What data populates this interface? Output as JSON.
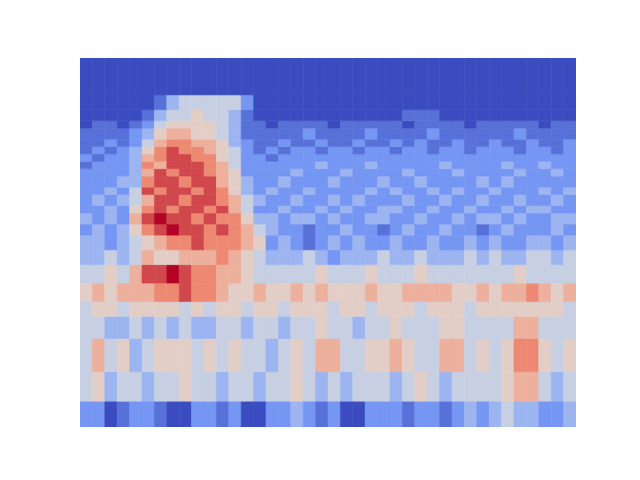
{
  "chart_data": {
    "type": "heatmap",
    "tick_labels": false,
    "xlim": [
      0,
      40
    ],
    "ylim": [
      0,
      100
    ],
    "y_edges": [
      0,
      7,
      15,
      24,
      30,
      34,
      39,
      44,
      48,
      52,
      55,
      58,
      60,
      63,
      65,
      68,
      70,
      72,
      74,
      76,
      78,
      81,
      83,
      86,
      90,
      100
    ],
    "color_range": [
      0,
      9
    ],
    "cells": [
      [
        2,
        2,
        0,
        1,
        2,
        2,
        1,
        0,
        0,
        2,
        2,
        1,
        2,
        0,
        0,
        2,
        2,
        3,
        2,
        1,
        2,
        0,
        0,
        2,
        2,
        2,
        1,
        2,
        2,
        1,
        2,
        3,
        2,
        3,
        4,
        3,
        3,
        2,
        2,
        3
      ],
      [
        4,
        5,
        3,
        4,
        4,
        3,
        4,
        4,
        5,
        4,
        4,
        3,
        4,
        4,
        3,
        4,
        4,
        5,
        4,
        3,
        4,
        3,
        4,
        4,
        4,
        3,
        4,
        5,
        4,
        3,
        4,
        4,
        4,
        4,
        5,
        6,
        6,
        4,
        3,
        4
      ],
      [
        4,
        6,
        4,
        5,
        3,
        4,
        5,
        5,
        5,
        4,
        5,
        4,
        5,
        4,
        4,
        3,
        4,
        5,
        4,
        6,
        6,
        4,
        4,
        5,
        5,
        6,
        5,
        4,
        4,
        6,
        6,
        4,
        5,
        4,
        5,
        7,
        7,
        5,
        4,
        5
      ],
      [
        4,
        4,
        3,
        3,
        4,
        3,
        4,
        3,
        4,
        3,
        3,
        4,
        4,
        3,
        4,
        4,
        3,
        4,
        4,
        5,
        4,
        4,
        3,
        4,
        4,
        5,
        4,
        4,
        4,
        5,
        5,
        4,
        4,
        4,
        4,
        6,
        6,
        4,
        4,
        4
      ],
      [
        4,
        5,
        5,
        4,
        5,
        5,
        5,
        5,
        4,
        5,
        4,
        5,
        5,
        4,
        5,
        5,
        4,
        5,
        5,
        5,
        4,
        5,
        5,
        4,
        5,
        5,
        5,
        4,
        5,
        5,
        5,
        4,
        5,
        5,
        5,
        5,
        5,
        5,
        5,
        4
      ],
      [
        5,
        6,
        5,
        6,
        6,
        6,
        7,
        7,
        8,
        7,
        7,
        6,
        5,
        5,
        6,
        5,
        5,
        6,
        5,
        6,
        5,
        5,
        5,
        6,
        5,
        5,
        6,
        6,
        6,
        6,
        5,
        5,
        6,
        5,
        6,
        6,
        7,
        6,
        5,
        6
      ],
      [
        4,
        4,
        5,
        4,
        6,
        8,
        8,
        9,
        8,
        7,
        7,
        6,
        6,
        5,
        4,
        4,
        4,
        4,
        4,
        5,
        4,
        4,
        4,
        5,
        4,
        4,
        4,
        5,
        4,
        4,
        4,
        4,
        4,
        4,
        4,
        5,
        4,
        4,
        4,
        4
      ],
      [
        3,
        3,
        4,
        3,
        4,
        6,
        5,
        5,
        6,
        6,
        6,
        7,
        6,
        5,
        4,
        3,
        3,
        3,
        4,
        3,
        2,
        3,
        3,
        3,
        4,
        3,
        3,
        4,
        3,
        3,
        3,
        4,
        3,
        4,
        3,
        3,
        4,
        4,
        3,
        4
      ],
      [
        3,
        3,
        2,
        3,
        4,
        5,
        6,
        7,
        7,
        8,
        7,
        7,
        7,
        6,
        5,
        2,
        3,
        2,
        1,
        2,
        3,
        2,
        3,
        2,
        2,
        3,
        2,
        2,
        3,
        2,
        2,
        3,
        2,
        3,
        2,
        2,
        3,
        3,
        2,
        3
      ],
      [
        2,
        3,
        2,
        3,
        5,
        7,
        8,
        9,
        8,
        8,
        7,
        8,
        7,
        6,
        4,
        3,
        2,
        2,
        1,
        2,
        2,
        3,
        2,
        2,
        1,
        2,
        3,
        2,
        2,
        3,
        2,
        2,
        1,
        2,
        3,
        2,
        2,
        2,
        3,
        2
      ],
      [
        3,
        2,
        3,
        2,
        6,
        8,
        9,
        8,
        8,
        7,
        8,
        7,
        7,
        5,
        3,
        3,
        2,
        3,
        3,
        2,
        3,
        2,
        2,
        3,
        3,
        2,
        2,
        3,
        2,
        2,
        3,
        2,
        3,
        3,
        2,
        3,
        2,
        2,
        3,
        3
      ],
      [
        2,
        2,
        3,
        2,
        5,
        7,
        8,
        7,
        8,
        8,
        7,
        8,
        6,
        4,
        2,
        2,
        3,
        2,
        2,
        3,
        2,
        3,
        2,
        2,
        3,
        3,
        2,
        2,
        3,
        2,
        2,
        3,
        2,
        2,
        3,
        2,
        3,
        3,
        2,
        2
      ],
      [
        2,
        3,
        2,
        3,
        4,
        6,
        8,
        8,
        7,
        8,
        8,
        7,
        6,
        4,
        3,
        2,
        2,
        3,
        2,
        2,
        3,
        2,
        3,
        2,
        2,
        2,
        3,
        2,
        2,
        3,
        2,
        2,
        3,
        2,
        2,
        3,
        2,
        2,
        3,
        2
      ],
      [
        2,
        2,
        3,
        2,
        4,
        8,
        7,
        8,
        8,
        7,
        8,
        7,
        5,
        3,
        2,
        3,
        2,
        2,
        3,
        2,
        2,
        2,
        2,
        3,
        2,
        3,
        2,
        2,
        3,
        2,
        3,
        2,
        2,
        3,
        2,
        2,
        2,
        3,
        2,
        3
      ],
      [
        2,
        2,
        2,
        3,
        3,
        7,
        8,
        8,
        7,
        8,
        8,
        6,
        5,
        3,
        2,
        2,
        3,
        2,
        2,
        2,
        3,
        2,
        2,
        2,
        3,
        2,
        2,
        3,
        2,
        2,
        2,
        2,
        3,
        2,
        3,
        2,
        2,
        2,
        2,
        2
      ],
      [
        2,
        2,
        2,
        2,
        3,
        6,
        8,
        7,
        8,
        8,
        7,
        6,
        5,
        2,
        2,
        2,
        2,
        3,
        2,
        2,
        2,
        3,
        2,
        2,
        2,
        2,
        3,
        2,
        2,
        2,
        3,
        2,
        2,
        2,
        2,
        3,
        2,
        2,
        3,
        2
      ],
      [
        1,
        2,
        2,
        2,
        3,
        7,
        6,
        8,
        8,
        8,
        7,
        6,
        4,
        2,
        2,
        2,
        2,
        2,
        2,
        3,
        2,
        2,
        2,
        3,
        2,
        2,
        2,
        2,
        2,
        3,
        2,
        2,
        2,
        2,
        3,
        2,
        2,
        3,
        2,
        2
      ],
      [
        2,
        1,
        2,
        2,
        3,
        6,
        7,
        8,
        8,
        7,
        7,
        5,
        4,
        2,
        2,
        1,
        2,
        2,
        2,
        2,
        2,
        2,
        2,
        2,
        2,
        2,
        2,
        2,
        2,
        2,
        2,
        2,
        2,
        2,
        2,
        2,
        2,
        2,
        2,
        2
      ],
      [
        1,
        2,
        1,
        2,
        3,
        5,
        7,
        8,
        7,
        7,
        6,
        5,
        4,
        2,
        1,
        2,
        1,
        2,
        2,
        1,
        2,
        2,
        1,
        2,
        2,
        1,
        2,
        2,
        1,
        2,
        2,
        1,
        2,
        2,
        2,
        1,
        2,
        2,
        1,
        2
      ],
      [
        1,
        1,
        2,
        1,
        2,
        4,
        6,
        7,
        7,
        6,
        6,
        5,
        3,
        2,
        1,
        1,
        2,
        1,
        1,
        2,
        1,
        1,
        2,
        1,
        1,
        2,
        1,
        2,
        1,
        1,
        2,
        1,
        1,
        2,
        1,
        1,
        2,
        1,
        1,
        2
      ],
      [
        1,
        1,
        1,
        1,
        2,
        3,
        5,
        6,
        6,
        5,
        5,
        4,
        3,
        1,
        1,
        1,
        1,
        1,
        2,
        1,
        1,
        1,
        1,
        2,
        1,
        1,
        1,
        1,
        2,
        1,
        1,
        1,
        1,
        1,
        1,
        2,
        1,
        1,
        1,
        1
      ],
      [
        0,
        1,
        1,
        0,
        1,
        2,
        4,
        5,
        5,
        5,
        5,
        4,
        3,
        1,
        1,
        0,
        1,
        1,
        1,
        1,
        0,
        1,
        1,
        1,
        1,
        1,
        0,
        1,
        1,
        1,
        1,
        0,
        1,
        1,
        1,
        1,
        1,
        0,
        1,
        1
      ],
      [
        0,
        0,
        0,
        0,
        0,
        1,
        3,
        4,
        4,
        5,
        4,
        4,
        3,
        1,
        0,
        0,
        0,
        0,
        0,
        0,
        0,
        0,
        0,
        0,
        0,
        0,
        1,
        1,
        1,
        0,
        0,
        0,
        0,
        0,
        0,
        0,
        0,
        0,
        0,
        0
      ],
      [
        0,
        0,
        0,
        0,
        0,
        0,
        1,
        3,
        4,
        4,
        4,
        4,
        4,
        2,
        0,
        0,
        0,
        0,
        0,
        0,
        0,
        0,
        0,
        0,
        0,
        0,
        0,
        0,
        0,
        0,
        0,
        0,
        0,
        0,
        0,
        0,
        0,
        0,
        0,
        0
      ],
      [
        0,
        0,
        0,
        0,
        0,
        0,
        0,
        0,
        0,
        0,
        0,
        0,
        0,
        0,
        0,
        0,
        0,
        0,
        0,
        0,
        0,
        0,
        0,
        0,
        0,
        0,
        0,
        0,
        0,
        0,
        0,
        0,
        0,
        0,
        0,
        0,
        0,
        0,
        0,
        0
      ]
    ]
  }
}
